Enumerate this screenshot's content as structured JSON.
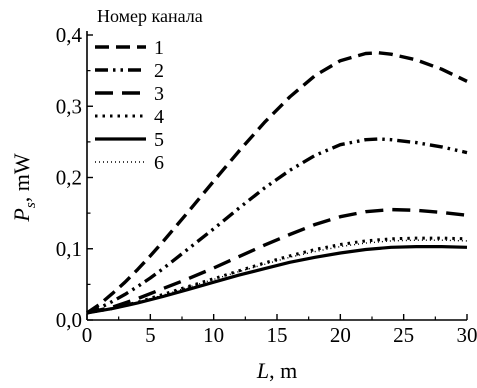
{
  "chart_data": {
    "type": "line",
    "xlabel_var": "L",
    "xlabel_unit": ", m",
    "ylabel_var": "P",
    "ylabel_sub": "s",
    "ylabel_unit": ", mW",
    "xlim": [
      0,
      30
    ],
    "ylim": [
      0,
      0.4
    ],
    "xticks": [
      0,
      5,
      10,
      15,
      20,
      25,
      30
    ],
    "yticks": [
      0.0,
      0.1,
      0.2,
      0.3,
      0.4
    ],
    "xtick_labels": [
      "0",
      "5",
      "10",
      "15",
      "20",
      "25",
      "30"
    ],
    "ytick_labels": [
      "0,0",
      "0,1",
      "0,2",
      "0,3",
      "0,4"
    ],
    "grid": false,
    "legend": {
      "title": "Номер канала",
      "placement": "top-left"
    },
    "series": [
      {
        "name": "1",
        "style": "dash",
        "x": [
          0,
          1,
          2,
          3,
          4,
          5,
          6,
          8,
          10,
          12,
          14,
          16,
          18,
          20,
          22,
          23,
          24,
          26,
          28,
          30
        ],
        "y": [
          0.01,
          0.022,
          0.037,
          0.053,
          0.071,
          0.09,
          0.11,
          0.152,
          0.195,
          0.237,
          0.277,
          0.313,
          0.343,
          0.364,
          0.374,
          0.375,
          0.373,
          0.365,
          0.352,
          0.335
        ]
      },
      {
        "name": "2",
        "style": "dashdotdot",
        "x": [
          0,
          1,
          2,
          3,
          4,
          5,
          6,
          8,
          10,
          12,
          14,
          16,
          18,
          20,
          22,
          23,
          24,
          26,
          28,
          30
        ],
        "y": [
          0.01,
          0.017,
          0.026,
          0.036,
          0.047,
          0.059,
          0.072,
          0.1,
          0.128,
          0.157,
          0.185,
          0.21,
          0.231,
          0.246,
          0.253,
          0.254,
          0.253,
          0.249,
          0.243,
          0.235
        ]
      },
      {
        "name": "3",
        "style": "longdash",
        "x": [
          0,
          2,
          4,
          6,
          8,
          10,
          12,
          14,
          16,
          18,
          20,
          22,
          24,
          26,
          28,
          30
        ],
        "y": [
          0.01,
          0.018,
          0.03,
          0.044,
          0.058,
          0.073,
          0.089,
          0.105,
          0.12,
          0.134,
          0.145,
          0.152,
          0.155,
          0.154,
          0.151,
          0.147
        ]
      },
      {
        "name": "4",
        "style": "dot",
        "x": [
          0,
          2,
          4,
          6,
          8,
          10,
          12,
          14,
          16,
          18,
          20,
          22,
          24,
          26,
          28,
          30
        ],
        "y": [
          0.01,
          0.016,
          0.025,
          0.036,
          0.047,
          0.058,
          0.069,
          0.08,
          0.09,
          0.099,
          0.106,
          0.111,
          0.114,
          0.115,
          0.115,
          0.114
        ]
      },
      {
        "name": "5",
        "style": "solid",
        "x": [
          0,
          2,
          4,
          6,
          8,
          10,
          12,
          14,
          16,
          18,
          20,
          22,
          24,
          26,
          28,
          30
        ],
        "y": [
          0.01,
          0.016,
          0.024,
          0.033,
          0.043,
          0.053,
          0.063,
          0.072,
          0.081,
          0.088,
          0.094,
          0.099,
          0.102,
          0.103,
          0.103,
          0.102
        ]
      },
      {
        "name": "6",
        "style": "fine-dot",
        "x": [
          0,
          2,
          4,
          6,
          8,
          10,
          12,
          14,
          16,
          18,
          20,
          22,
          24,
          26,
          28,
          30
        ],
        "y": [
          0.01,
          0.016,
          0.025,
          0.035,
          0.046,
          0.057,
          0.068,
          0.078,
          0.088,
          0.096,
          0.103,
          0.108,
          0.111,
          0.112,
          0.112,
          0.111
        ]
      }
    ]
  }
}
